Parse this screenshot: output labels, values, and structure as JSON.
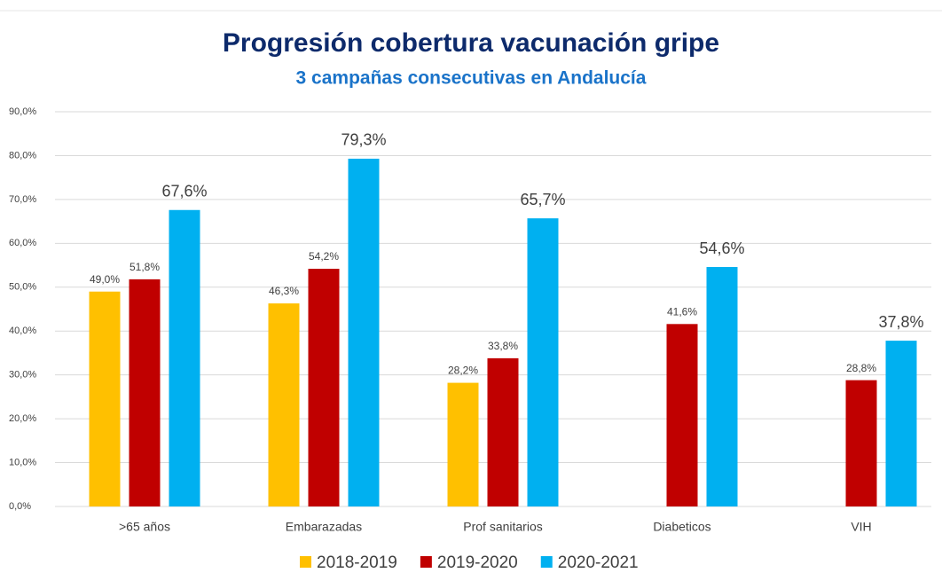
{
  "chart_data": {
    "type": "bar",
    "title": "Progresión cobertura vacunación gripe",
    "subtitle": "3 campañas consecutivas en Andalucía",
    "categories": [
      ">65 años",
      "Embarazadas",
      "Prof sanitarios",
      "Diabeticos",
      "VIH"
    ],
    "series": [
      {
        "name": "2018-2019",
        "color": "#ffc000",
        "values": [
          49.0,
          46.3,
          28.2,
          null,
          null
        ],
        "value_labels": [
          "49,0%",
          "46,3%",
          "28,2%",
          null,
          null
        ]
      },
      {
        "name": "2019-2020",
        "color": "#c00000",
        "values": [
          51.8,
          54.2,
          33.8,
          41.6,
          28.8
        ],
        "value_labels": [
          "51,8%",
          "54,2%",
          "33,8%",
          "41,6%",
          "28,8%"
        ]
      },
      {
        "name": "2020-2021",
        "color": "#00b0f0",
        "values": [
          67.6,
          79.3,
          65.7,
          54.6,
          37.8
        ],
        "value_labels": [
          "67,6%",
          "79,3%",
          "65,7%",
          "54,6%",
          "37,8%"
        ]
      }
    ],
    "ylim": [
      0,
      90
    ],
    "yticks": [
      {
        "value": 0,
        "label": "0,0%"
      },
      {
        "value": 10,
        "label": "10,0%"
      },
      {
        "value": 20,
        "label": "20,0%"
      },
      {
        "value": 30,
        "label": "30,0%"
      },
      {
        "value": 40,
        "label": "40,0%"
      },
      {
        "value": 50,
        "label": "50,0%"
      },
      {
        "value": 60,
        "label": "60,0%"
      },
      {
        "value": 70,
        "label": "70,0%"
      },
      {
        "value": 80,
        "label": "80,0%"
      },
      {
        "value": 90,
        "label": "90,0%"
      }
    ],
    "grid": true,
    "legend": "bottom"
  }
}
